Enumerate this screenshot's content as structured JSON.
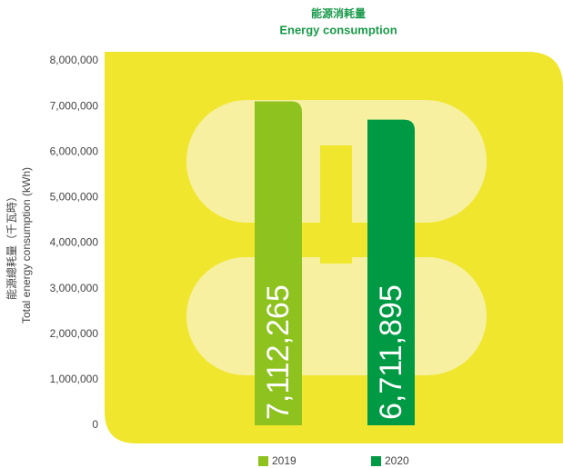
{
  "chart_data": {
    "type": "bar",
    "title": "能源消耗量",
    "subtitle": "Energy consumption",
    "y_label": [
      "能源總耗量（千瓦時）",
      "Total energy consumption (kWh)"
    ],
    "categories": [
      null
    ],
    "series": [
      {
        "name": "2019",
        "color": "#8dc21f",
        "values": [
          7112265
        ],
        "value_labels": [
          "7,112,265"
        ]
      },
      {
        "name": "2020",
        "color": "#009a44",
        "values": [
          6711895
        ],
        "value_labels": [
          "6,711,895"
        ]
      }
    ],
    "ylim": [
      0,
      8000000
    ],
    "yticks": [
      0,
      {
        "value": 1000000,
        "label": "1,000,000"
      },
      {
        "value": 2000000,
        "label": "2,000,000"
      },
      {
        "value": 3000000,
        "label": "3,000,000"
      },
      {
        "value": 4000000,
        "label": "4,000,000"
      },
      {
        "value": 5000000,
        "label": "5,000,000"
      },
      {
        "value": 6000000,
        "label": "6,000,000"
      },
      {
        "value": 7000000,
        "label": "7,000,000"
      },
      {
        "value": 8000000,
        "label": "8,000,000"
      }
    ],
    "grid": false,
    "legend": "bottom"
  }
}
